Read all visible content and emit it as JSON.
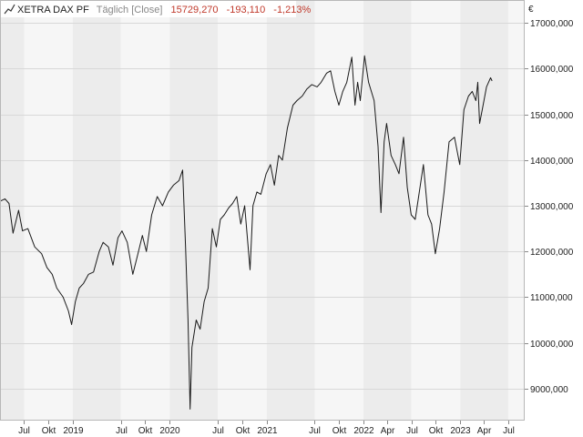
{
  "header": {
    "name": "XETRA DAX PF",
    "interval": "Täglich [Close]",
    "last_value": "15729,270",
    "change": "-193,110",
    "change_pct": "-1,213%"
  },
  "colors": {
    "line": "#1a1a1a",
    "negative": "#c0392b",
    "muted": "#888888",
    "band_dark": "#ececec",
    "band_light": "#f6f6f6",
    "grid": "#d8d8d8"
  },
  "chart_data": {
    "type": "line",
    "title": "XETRA DAX PF",
    "currency_label": "€",
    "ylim": [
      8300,
      17500
    ],
    "y_ticks": [
      9000,
      10000,
      11000,
      12000,
      13000,
      14000,
      15000,
      16000,
      17000
    ],
    "y_tick_labels": [
      "9000,000",
      "10000,000",
      "11000,000",
      "12000,000",
      "13000,000",
      "14000,000",
      "15000,000",
      "16000,000",
      "17000,000"
    ],
    "xlim": [
      "2018-04-01",
      "2023-09-01"
    ],
    "x_ticks": [
      {
        "date": "2018-07-01",
        "label": "Jul"
      },
      {
        "date": "2018-10-01",
        "label": "Okt"
      },
      {
        "date": "2019-01-01",
        "label": "2019"
      },
      {
        "date": "2019-07-01",
        "label": "Jul"
      },
      {
        "date": "2019-10-01",
        "label": "Okt"
      },
      {
        "date": "2020-01-01",
        "label": "2020"
      },
      {
        "date": "2020-07-01",
        "label": "Jul"
      },
      {
        "date": "2020-10-01",
        "label": "Okt"
      },
      {
        "date": "2021-01-01",
        "label": "2021"
      },
      {
        "date": "2021-07-01",
        "label": "Jul"
      },
      {
        "date": "2021-10-01",
        "label": "Okt"
      },
      {
        "date": "2022-01-01",
        "label": "2022"
      },
      {
        "date": "2022-04-01",
        "label": "Apr"
      },
      {
        "date": "2022-07-01",
        "label": "Jul"
      },
      {
        "date": "2022-10-01",
        "label": "Okt"
      },
      {
        "date": "2023-01-01",
        "label": "2023"
      },
      {
        "date": "2023-04-01",
        "label": "Apr"
      },
      {
        "date": "2023-07-01",
        "label": "Jul"
      }
    ],
    "bands": [
      {
        "from": "2018-04-01",
        "to": "2018-07-01",
        "shade": "dark"
      },
      {
        "from": "2018-07-01",
        "to": "2019-01-01",
        "shade": "light"
      },
      {
        "from": "2019-01-01",
        "to": "2019-07-01",
        "shade": "dark"
      },
      {
        "from": "2019-07-01",
        "to": "2020-01-01",
        "shade": "light"
      },
      {
        "from": "2020-01-01",
        "to": "2020-07-01",
        "shade": "dark"
      },
      {
        "from": "2020-07-01",
        "to": "2021-01-01",
        "shade": "light"
      },
      {
        "from": "2021-01-01",
        "to": "2021-07-01",
        "shade": "dark"
      },
      {
        "from": "2021-07-01",
        "to": "2022-01-01",
        "shade": "light"
      },
      {
        "from": "2022-01-01",
        "to": "2022-07-01",
        "shade": "dark"
      },
      {
        "from": "2022-07-01",
        "to": "2023-01-01",
        "shade": "light"
      },
      {
        "from": "2023-01-01",
        "to": "2023-07-01",
        "shade": "dark"
      },
      {
        "from": "2023-07-01",
        "to": "2023-09-01",
        "shade": "light"
      }
    ],
    "grid": true,
    "series": [
      {
        "values": [
          [
            "2018-04-01",
            13100
          ],
          [
            "2018-04-20",
            13150
          ],
          [
            "2018-05-05",
            13050
          ],
          [
            "2018-05-20",
            12400
          ],
          [
            "2018-06-10",
            12900
          ],
          [
            "2018-06-25",
            12450
          ],
          [
            "2018-07-15",
            12500
          ],
          [
            "2018-08-10",
            12100
          ],
          [
            "2018-09-05",
            11950
          ],
          [
            "2018-09-25",
            11650
          ],
          [
            "2018-10-15",
            11500
          ],
          [
            "2018-11-01",
            11200
          ],
          [
            "2018-11-25",
            11000
          ],
          [
            "2018-12-15",
            10700
          ],
          [
            "2018-12-27",
            10400
          ],
          [
            "2019-01-10",
            10900
          ],
          [
            "2019-01-25",
            11200
          ],
          [
            "2019-02-10",
            11300
          ],
          [
            "2019-03-01",
            11500
          ],
          [
            "2019-03-20",
            11550
          ],
          [
            "2019-04-10",
            12000
          ],
          [
            "2019-04-25",
            12200
          ],
          [
            "2019-05-15",
            12100
          ],
          [
            "2019-06-01",
            11700
          ],
          [
            "2019-06-20",
            12300
          ],
          [
            "2019-07-05",
            12450
          ],
          [
            "2019-07-25",
            12200
          ],
          [
            "2019-08-15",
            11500
          ],
          [
            "2019-09-01",
            11900
          ],
          [
            "2019-09-20",
            12350
          ],
          [
            "2019-10-05",
            12000
          ],
          [
            "2019-10-25",
            12800
          ],
          [
            "2019-11-15",
            13200
          ],
          [
            "2019-12-05",
            13000
          ],
          [
            "2019-12-27",
            13300
          ],
          [
            "2020-01-15",
            13450
          ],
          [
            "2020-02-05",
            13550
          ],
          [
            "2020-02-19",
            13780
          ],
          [
            "2020-03-01",
            12100
          ],
          [
            "2020-03-10",
            10500
          ],
          [
            "2020-03-18",
            8550
          ],
          [
            "2020-03-25",
            9900
          ],
          [
            "2020-04-10",
            10500
          ],
          [
            "2020-04-25",
            10300
          ],
          [
            "2020-05-10",
            10900
          ],
          [
            "2020-05-25",
            11200
          ],
          [
            "2020-06-10",
            12500
          ],
          [
            "2020-06-25",
            12100
          ],
          [
            "2020-07-10",
            12700
          ],
          [
            "2020-07-25",
            12800
          ],
          [
            "2020-08-10",
            12950
          ],
          [
            "2020-08-25",
            13050
          ],
          [
            "2020-09-10",
            13200
          ],
          [
            "2020-09-25",
            12600
          ],
          [
            "2020-10-10",
            13000
          ],
          [
            "2020-10-30",
            11600
          ],
          [
            "2020-11-10",
            13000
          ],
          [
            "2020-11-25",
            13300
          ],
          [
            "2020-12-10",
            13250
          ],
          [
            "2020-12-30",
            13700
          ],
          [
            "2021-01-15",
            13900
          ],
          [
            "2021-01-30",
            13450
          ],
          [
            "2021-02-15",
            14100
          ],
          [
            "2021-03-01",
            14000
          ],
          [
            "2021-03-20",
            14700
          ],
          [
            "2021-04-10",
            15200
          ],
          [
            "2021-04-25",
            15300
          ],
          [
            "2021-05-15",
            15400
          ],
          [
            "2021-06-01",
            15550
          ],
          [
            "2021-06-20",
            15650
          ],
          [
            "2021-07-10",
            15600
          ],
          [
            "2021-07-25",
            15700
          ],
          [
            "2021-08-15",
            15900
          ],
          [
            "2021-08-30",
            15950
          ],
          [
            "2021-09-15",
            15500
          ],
          [
            "2021-09-30",
            15200
          ],
          [
            "2021-10-15",
            15500
          ],
          [
            "2021-10-30",
            15700
          ],
          [
            "2021-11-18",
            16250
          ],
          [
            "2021-11-30",
            15200
          ],
          [
            "2021-12-10",
            15700
          ],
          [
            "2021-12-20",
            15300
          ],
          [
            "2022-01-05",
            16280
          ],
          [
            "2022-01-20",
            15700
          ],
          [
            "2022-02-10",
            15300
          ],
          [
            "2022-02-25",
            14300
          ],
          [
            "2022-03-08",
            12850
          ],
          [
            "2022-03-20",
            14400
          ],
          [
            "2022-03-29",
            14800
          ],
          [
            "2022-04-15",
            14100
          ],
          [
            "2022-05-01",
            13900
          ],
          [
            "2022-05-15",
            13700
          ],
          [
            "2022-06-01",
            14500
          ],
          [
            "2022-06-15",
            13400
          ],
          [
            "2022-06-30",
            12800
          ],
          [
            "2022-07-15",
            12700
          ],
          [
            "2022-08-15",
            13900
          ],
          [
            "2022-09-01",
            12800
          ],
          [
            "2022-09-15",
            12600
          ],
          [
            "2022-09-29",
            11950
          ],
          [
            "2022-10-15",
            12500
          ],
          [
            "2022-11-01",
            13300
          ],
          [
            "2022-11-20",
            14400
          ],
          [
            "2022-12-10",
            14500
          ],
          [
            "2022-12-30",
            13900
          ],
          [
            "2023-01-15",
            15100
          ],
          [
            "2023-02-01",
            15400
          ],
          [
            "2023-02-15",
            15500
          ],
          [
            "2023-03-01",
            15300
          ],
          [
            "2023-03-08",
            15700
          ],
          [
            "2023-03-15",
            14800
          ],
          [
            "2023-03-25",
            15100
          ],
          [
            "2023-04-10",
            15600
          ],
          [
            "2023-04-25",
            15800
          ],
          [
            "2023-05-01",
            15729
          ]
        ]
      }
    ]
  }
}
